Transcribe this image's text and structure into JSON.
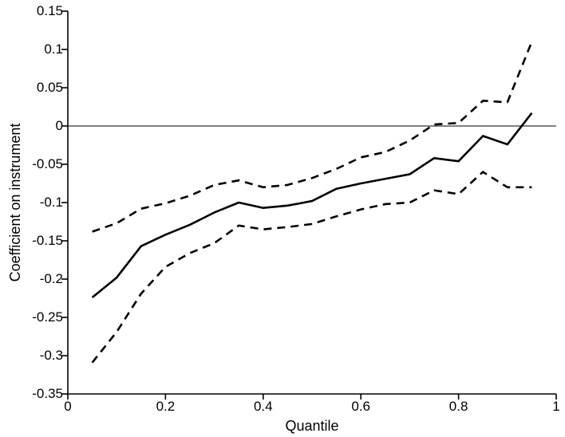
{
  "chart_data": {
    "type": "line",
    "title": "",
    "xlabel": "Quantile",
    "ylabel": "Coefficient on instrument",
    "xlim": [
      0,
      1
    ],
    "ylim": [
      -0.35,
      0.15
    ],
    "xticks": [
      0,
      0.2,
      0.4,
      0.6,
      0.8,
      1
    ],
    "xtick_labels": [
      "0",
      "0.2",
      "0.4",
      "0.6",
      "0.8",
      "1"
    ],
    "yticks": [
      -0.35,
      -0.3,
      -0.25,
      -0.2,
      -0.15,
      -0.1,
      -0.05,
      0,
      0.05,
      0.1,
      0.15
    ],
    "ytick_labels": [
      "-0.35",
      "-0.3",
      "-0.25",
      "-0.2",
      "-0.15",
      "-0.1",
      "-0.05",
      "0",
      "0.05",
      "0.1",
      "0.15"
    ],
    "grid": false,
    "legend": "none",
    "reference_line_y": 0,
    "x": [
      0.05,
      0.1,
      0.15,
      0.2,
      0.25,
      0.3,
      0.35,
      0.4,
      0.45,
      0.5,
      0.55,
      0.6,
      0.65,
      0.7,
      0.75,
      0.8,
      0.85,
      0.9,
      0.95
    ],
    "series": [
      {
        "name": "coefficient-estimate",
        "style": "solid",
        "color": "#000000",
        "values": [
          -0.224,
          -0.198,
          -0.157,
          -0.142,
          -0.129,
          -0.113,
          -0.1,
          -0.107,
          -0.104,
          -0.098,
          -0.082,
          -0.075,
          -0.069,
          -0.063,
          -0.042,
          -0.046,
          -0.013,
          -0.024,
          0.017
        ]
      },
      {
        "name": "upper-confidence-band",
        "style": "dashed",
        "color": "#000000",
        "values": [
          -0.138,
          -0.127,
          -0.108,
          -0.101,
          -0.091,
          -0.077,
          -0.071,
          -0.08,
          -0.077,
          -0.068,
          -0.056,
          -0.041,
          -0.034,
          -0.019,
          0.002,
          0.004,
          0.033,
          0.031,
          0.11
        ]
      },
      {
        "name": "lower-confidence-band",
        "style": "dashed",
        "color": "#000000",
        "values": [
          -0.309,
          -0.269,
          -0.219,
          -0.184,
          -0.166,
          -0.153,
          -0.13,
          -0.135,
          -0.132,
          -0.128,
          -0.118,
          -0.109,
          -0.102,
          -0.1,
          -0.084,
          -0.089,
          -0.06,
          -0.08,
          -0.08
        ]
      }
    ]
  },
  "colors": {
    "foreground": "#000000",
    "background": "#ffffff"
  }
}
